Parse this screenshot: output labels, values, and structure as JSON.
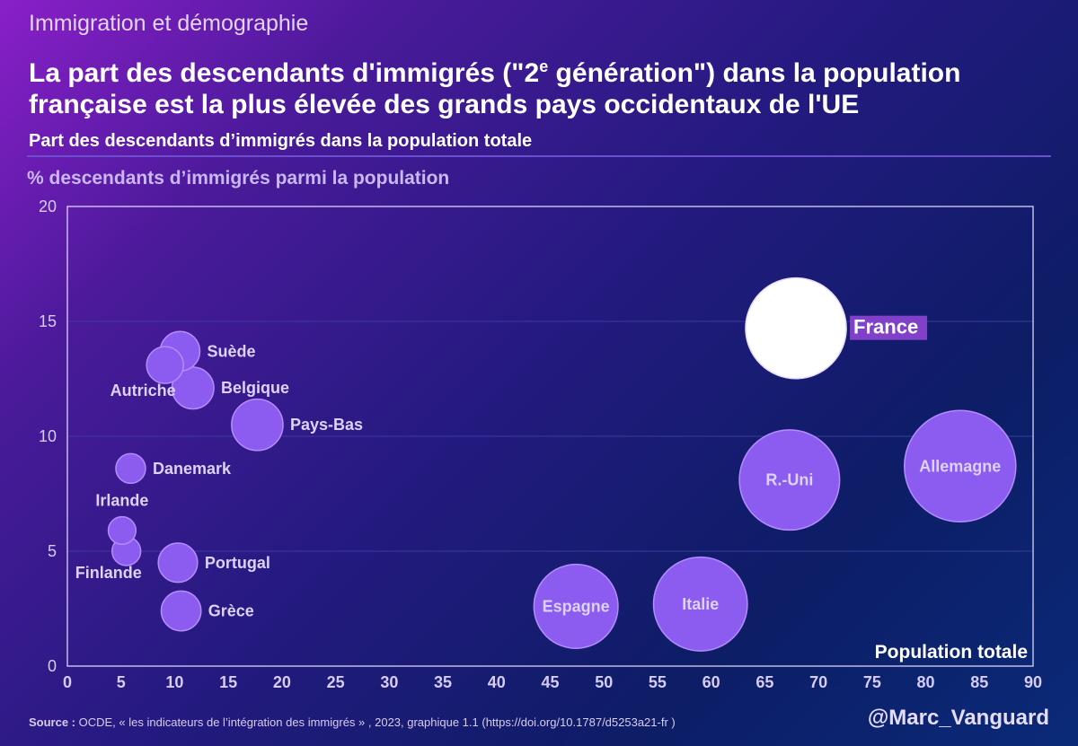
{
  "kicker": "Immigration et démographie",
  "title": {
    "line1_before": "La part des descendants d'immigrés (\"2",
    "line1_sup": "e",
    "line1_after": " génération\") dans la population",
    "line2": "française est la plus élevée des grands pays occidentaux de l'UE"
  },
  "subtitle": "Part des descendants d’immigrés dans la population totale",
  "colors": {
    "bubble": "#8c5cf0",
    "bubble_stroke": "#b48cff",
    "highlight": "#ffffff",
    "highlight_label_bg": "#8040c8",
    "label": "#ddd2f8",
    "grid": "#3a3aa0",
    "axis_text": "#d6ccf4"
  },
  "chart_data": {
    "type": "scatter",
    "title": "Part des descendants d’immigrés dans la population totale",
    "xlabel": "Population totale",
    "ylabel": "% descendants d’immigrés parmi la population",
    "xlim": [
      0,
      90
    ],
    "ylim": [
      0,
      20
    ],
    "xticks": [
      0,
      5,
      10,
      15,
      20,
      25,
      30,
      35,
      40,
      45,
      50,
      55,
      60,
      65,
      70,
      75,
      80,
      85,
      90
    ],
    "yticks": [
      0,
      5,
      10,
      15,
      20
    ],
    "size_variable": "Population totale",
    "points": [
      {
        "name": "Suède",
        "x": 10.5,
        "y": 13.7,
        "size": 10.5,
        "label_pos": "right"
      },
      {
        "name": "Autriche",
        "x": 9.1,
        "y": 13.1,
        "size": 9.1,
        "label_pos": "below-left"
      },
      {
        "name": "Belgique",
        "x": 11.7,
        "y": 12.1,
        "size": 11.7,
        "label_pos": "right"
      },
      {
        "name": "Pays-Bas",
        "x": 17.7,
        "y": 10.5,
        "size": 17.7,
        "label_pos": "right"
      },
      {
        "name": "Danemark",
        "x": 5.9,
        "y": 8.6,
        "size": 5.9,
        "label_pos": "right"
      },
      {
        "name": "Irlande",
        "x": 5.1,
        "y": 5.9,
        "size": 5.1,
        "label_pos": "above"
      },
      {
        "name": "Finlande",
        "x": 5.5,
        "y": 5.0,
        "size": 5.5,
        "label_pos": "below-left"
      },
      {
        "name": "Portugal",
        "x": 10.3,
        "y": 4.5,
        "size": 10.3,
        "label_pos": "right"
      },
      {
        "name": "Grèce",
        "x": 10.6,
        "y": 2.4,
        "size": 10.6,
        "label_pos": "right"
      },
      {
        "name": "France",
        "x": 67.9,
        "y": 14.7,
        "size": 67.9,
        "label_pos": "right",
        "highlight": true
      },
      {
        "name": "R.-Uni",
        "x": 67.3,
        "y": 8.1,
        "size": 67.3,
        "label_pos": "center"
      },
      {
        "name": "Allemagne",
        "x": 83.2,
        "y": 8.7,
        "size": 83.2,
        "label_pos": "center"
      },
      {
        "name": "Espagne",
        "x": 47.4,
        "y": 2.6,
        "size": 47.4,
        "label_pos": "center"
      },
      {
        "name": "Italie",
        "x": 59.0,
        "y": 2.7,
        "size": 59.0,
        "label_pos": "center"
      }
    ]
  },
  "source": {
    "label": "Source :",
    "text": " OCDE, « les indicateurs de l’intégration des immigrés » , 2023, graphique 1.1 (https://doi.org/10.1787/d5253a21-fr )"
  },
  "handle": "@Marc_Vanguard"
}
